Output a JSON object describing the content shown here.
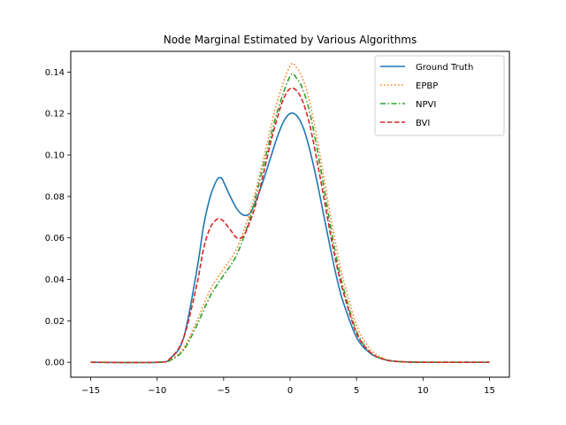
{
  "chart_data": {
    "type": "line",
    "title": "Node Marginal Estimated by Various Algorithms",
    "xlabel": "",
    "ylabel": "",
    "xlim": [
      -16.5,
      16.5
    ],
    "ylim": [
      -0.0072,
      0.15
    ],
    "xticks": [
      -15,
      -10,
      -5,
      0,
      5,
      10,
      15
    ],
    "yticks": [
      0.0,
      0.02,
      0.04,
      0.06,
      0.08,
      0.1,
      0.12,
      0.14
    ],
    "ytick_labels": [
      "0.00",
      "0.02",
      "0.04",
      "0.06",
      "0.08",
      "0.10",
      "0.12",
      "0.14"
    ],
    "legend_position": "top-right",
    "grid": false,
    "series": [
      {
        "name": "Ground Truth",
        "color": "#1f77b4",
        "dash": "solid",
        "points": [
          [
            -15,
            0
          ],
          [
            -10,
            0
          ],
          [
            -9,
            0.002
          ],
          [
            -8,
            0.012
          ],
          [
            -7,
            0.045
          ],
          [
            -6.5,
            0.066
          ],
          [
            -6,
            0.08
          ],
          [
            -5.5,
            0.088
          ],
          [
            -5.2,
            0.089
          ],
          [
            -5,
            0.087
          ],
          [
            -4.5,
            0.08
          ],
          [
            -4,
            0.074
          ],
          [
            -3.5,
            0.071
          ],
          [
            -3,
            0.072
          ],
          [
            -2.5,
            0.079
          ],
          [
            -2,
            0.088
          ],
          [
            -1.5,
            0.098
          ],
          [
            -1,
            0.108
          ],
          [
            -0.5,
            0.116
          ],
          [
            0,
            0.12
          ],
          [
            0.5,
            0.119
          ],
          [
            1,
            0.113
          ],
          [
            1.5,
            0.102
          ],
          [
            2,
            0.088
          ],
          [
            2.5,
            0.072
          ],
          [
            3,
            0.056
          ],
          [
            3.5,
            0.041
          ],
          [
            4,
            0.029
          ],
          [
            5,
            0.012
          ],
          [
            6,
            0.0045
          ],
          [
            7,
            0.0015
          ],
          [
            8,
            0.0004
          ],
          [
            10,
            0
          ],
          [
            15,
            0
          ]
        ]
      },
      {
        "name": "EPBP",
        "color": "#ff7f0e",
        "dash": "dotted",
        "points": [
          [
            -15,
            0
          ],
          [
            -10,
            0
          ],
          [
            -9,
            0.0015
          ],
          [
            -8,
            0.007
          ],
          [
            -7,
            0.02
          ],
          [
            -6,
            0.035
          ],
          [
            -5,
            0.045
          ],
          [
            -4,
            0.055
          ],
          [
            -3,
            0.073
          ],
          [
            -2,
            0.098
          ],
          [
            -1,
            0.125
          ],
          [
            0,
            0.143
          ],
          [
            0.5,
            0.142
          ],
          [
            1,
            0.136
          ],
          [
            1.5,
            0.125
          ],
          [
            2,
            0.109
          ],
          [
            2.5,
            0.091
          ],
          [
            3,
            0.072
          ],
          [
            3.5,
            0.055
          ],
          [
            4,
            0.04
          ],
          [
            5,
            0.018
          ],
          [
            6,
            0.0065
          ],
          [
            7,
            0.002
          ],
          [
            8,
            0.0005
          ],
          [
            10,
            0
          ],
          [
            15,
            0
          ]
        ]
      },
      {
        "name": "NPVI",
        "color": "#2ca02c",
        "dash": "dashdot",
        "points": [
          [
            -15,
            0
          ],
          [
            -10,
            0
          ],
          [
            -9,
            0.001
          ],
          [
            -8,
            0.006
          ],
          [
            -7,
            0.018
          ],
          [
            -6,
            0.032
          ],
          [
            -5,
            0.042
          ],
          [
            -4,
            0.052
          ],
          [
            -3,
            0.07
          ],
          [
            -2,
            0.095
          ],
          [
            -1,
            0.12
          ],
          [
            0,
            0.138
          ],
          [
            0.5,
            0.137
          ],
          [
            1,
            0.131
          ],
          [
            1.5,
            0.12
          ],
          [
            2,
            0.104
          ],
          [
            2.5,
            0.086
          ],
          [
            3,
            0.067
          ],
          [
            3.5,
            0.05
          ],
          [
            4,
            0.036
          ],
          [
            5,
            0.015
          ],
          [
            6,
            0.005
          ],
          [
            7,
            0.0015
          ],
          [
            8,
            0.0004
          ],
          [
            10,
            0
          ],
          [
            15,
            0
          ]
        ]
      },
      {
        "name": "BVI",
        "color": "#d62728",
        "dash": "dashed",
        "points": [
          [
            -15,
            0
          ],
          [
            -10,
            0
          ],
          [
            -9,
            0.002
          ],
          [
            -8,
            0.012
          ],
          [
            -7,
            0.038
          ],
          [
            -6.5,
            0.055
          ],
          [
            -6,
            0.065
          ],
          [
            -5.5,
            0.069
          ],
          [
            -5.2,
            0.069
          ],
          [
            -5,
            0.068
          ],
          [
            -4.5,
            0.064
          ],
          [
            -4,
            0.06
          ],
          [
            -3.5,
            0.061
          ],
          [
            -3,
            0.068
          ],
          [
            -2.5,
            0.078
          ],
          [
            -2,
            0.091
          ],
          [
            -1.5,
            0.105
          ],
          [
            -1,
            0.117
          ],
          [
            -0.5,
            0.127
          ],
          [
            0,
            0.132
          ],
          [
            0.5,
            0.131
          ],
          [
            1,
            0.125
          ],
          [
            1.5,
            0.114
          ],
          [
            2,
            0.098
          ],
          [
            2.5,
            0.081
          ],
          [
            3,
            0.063
          ],
          [
            3.5,
            0.047
          ],
          [
            4,
            0.034
          ],
          [
            5,
            0.014
          ],
          [
            6,
            0.005
          ],
          [
            7,
            0.0015
          ],
          [
            8,
            0.0004
          ],
          [
            10,
            0
          ],
          [
            15,
            0
          ]
        ]
      }
    ]
  }
}
